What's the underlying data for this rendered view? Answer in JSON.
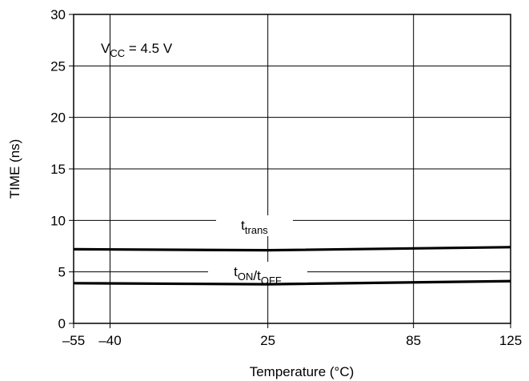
{
  "chart_data": {
    "type": "line",
    "title": "",
    "xlabel": "Temperature (°C)",
    "ylabel": "TIME (ns)",
    "x_ticks": [
      -55,
      -40,
      25,
      85,
      125
    ],
    "x_tick_labels": [
      "–55",
      "–40",
      "25",
      "85",
      "125"
    ],
    "y_ticks": [
      0,
      5,
      10,
      15,
      20,
      25,
      30
    ],
    "y_tick_labels": [
      "0",
      "5",
      "10",
      "15",
      "20",
      "25",
      "30"
    ],
    "xlim": [
      -55,
      125
    ],
    "ylim": [
      0,
      30
    ],
    "grid": true,
    "annotation": {
      "main": "V",
      "sub": "CC",
      "rest": " = 4.5 V"
    },
    "series": [
      {
        "label_parts": [
          {
            "t": "t",
            "sub": false
          },
          {
            "t": "trans",
            "sub": true
          }
        ],
        "x": [
          -55,
          25,
          125
        ],
        "y": [
          7.2,
          7.1,
          7.4
        ]
      },
      {
        "label_parts": [
          {
            "t": "t",
            "sub": false
          },
          {
            "t": "ON",
            "sub": true
          },
          {
            "t": "/t",
            "sub": false
          },
          {
            "t": "OFF",
            "sub": true
          }
        ],
        "x": [
          -55,
          25,
          125
        ],
        "y": [
          3.9,
          3.8,
          4.1
        ]
      }
    ]
  }
}
